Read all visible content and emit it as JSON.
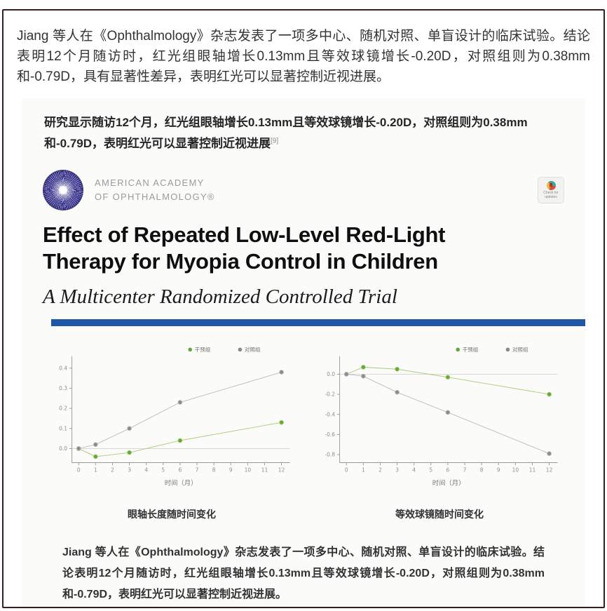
{
  "page": {
    "intro_paragraph": "Jiang 等人在《Ophthalmology》杂志发表了一项多中心、随机对照、单盲设计的临床试验。结论表明12个月随访时，红光组眼轴增长0.13mm且等效球镜增长-0.20D，对照组则为0.38mm和-0.79D，具有显著性差异，表明红光可以显著控制近视进展。"
  },
  "article_image": {
    "summary_text": "研究显示随访12个月，红光组眼轴增长0.13mm且等效球镜增长-0.20D，对照组则为0.38mm和-0.79D，表明红光可以显著控制近视进展",
    "summary_ref": "[9]",
    "logo": {
      "org_line1": "AMERICAN ACADEMY",
      "org_line2": "OF OPHTHALMOLOGY®"
    },
    "badge": {
      "line1": "Check for",
      "line2": "updates"
    },
    "title": "Effect of Repeated Low-Level Red-Light Therapy for Myopia Control in Children",
    "subtitle": "A Multicenter Randomized Controlled Trial",
    "footer_paragraph": "Jiang 等人在《Ophthalmology》杂志发表了一项多中心、随机对照、单盲设计的临床试验。结论表明12个月随访时，红光组眼轴增长0.13mm且等效球镜增长-0.20D，对照组则为0.38mm和-0.79D，表明红光可以显著控制近视进展。"
  },
  "colors": {
    "accent_blue_bar": "#1f57a8",
    "logo_indigo": "#423c91",
    "series_green": "#8fbf57",
    "series_green_point": "#69a637",
    "series_gray": "#bdbdbd",
    "series_gray_point": "#8a8a8a",
    "frame_border": "#33201d"
  },
  "chart_data": [
    {
      "type": "line",
      "name": "axial-length-chart",
      "title": "眼轴长度随时间变化",
      "xlabel": "时间（月）",
      "ylabel": "",
      "x": [
        0,
        1,
        3,
        6,
        12
      ],
      "series": [
        {
          "id": "intervention",
          "name": "干预组",
          "color": "#a9cc7e",
          "point_color": "#69a637",
          "values": [
            0.0,
            -0.04,
            -0.02,
            0.04,
            0.13
          ]
        },
        {
          "id": "control",
          "name": "对照组",
          "color": "#bdbdbd",
          "point_color": "#8a8a8a",
          "values": [
            0.0,
            0.02,
            0.1,
            0.23,
            0.38
          ]
        }
      ],
      "xlim": [
        -0.4,
        12.5
      ],
      "xticks": [
        0,
        1,
        2,
        3,
        4,
        5,
        6,
        7,
        8,
        9,
        10,
        11,
        12
      ],
      "ylim": [
        -0.07,
        0.44
      ],
      "yticks": [
        0.0,
        0.1,
        0.2,
        0.3,
        0.4
      ],
      "zero_line": true,
      "grid": false,
      "legend_position": "top-right"
    },
    {
      "type": "line",
      "name": "spherical-equivalent-chart",
      "title": "等效球镜随时间变化",
      "xlabel": "时间（月）",
      "ylabel": "",
      "x": [
        0,
        1,
        3,
        6,
        12
      ],
      "series": [
        {
          "id": "intervention",
          "name": "干预组",
          "color": "#a9cc7e",
          "point_color": "#69a637",
          "values": [
            0.0,
            0.07,
            0.05,
            -0.03,
            -0.2
          ]
        },
        {
          "id": "control",
          "name": "对照组",
          "color": "#bdbdbd",
          "point_color": "#8a8a8a",
          "values": [
            0.0,
            -0.02,
            -0.18,
            -0.38,
            -0.79
          ]
        }
      ],
      "xlim": [
        -0.4,
        12.5
      ],
      "xticks": [
        0,
        1,
        2,
        3,
        4,
        5,
        6,
        7,
        8,
        9,
        10,
        11,
        12
      ],
      "ylim": [
        -0.88,
        0.14
      ],
      "yticks": [
        0.0,
        -0.2,
        -0.4,
        -0.6,
        -0.8
      ],
      "zero_line": true,
      "grid": false,
      "legend_position": "top-right"
    }
  ]
}
